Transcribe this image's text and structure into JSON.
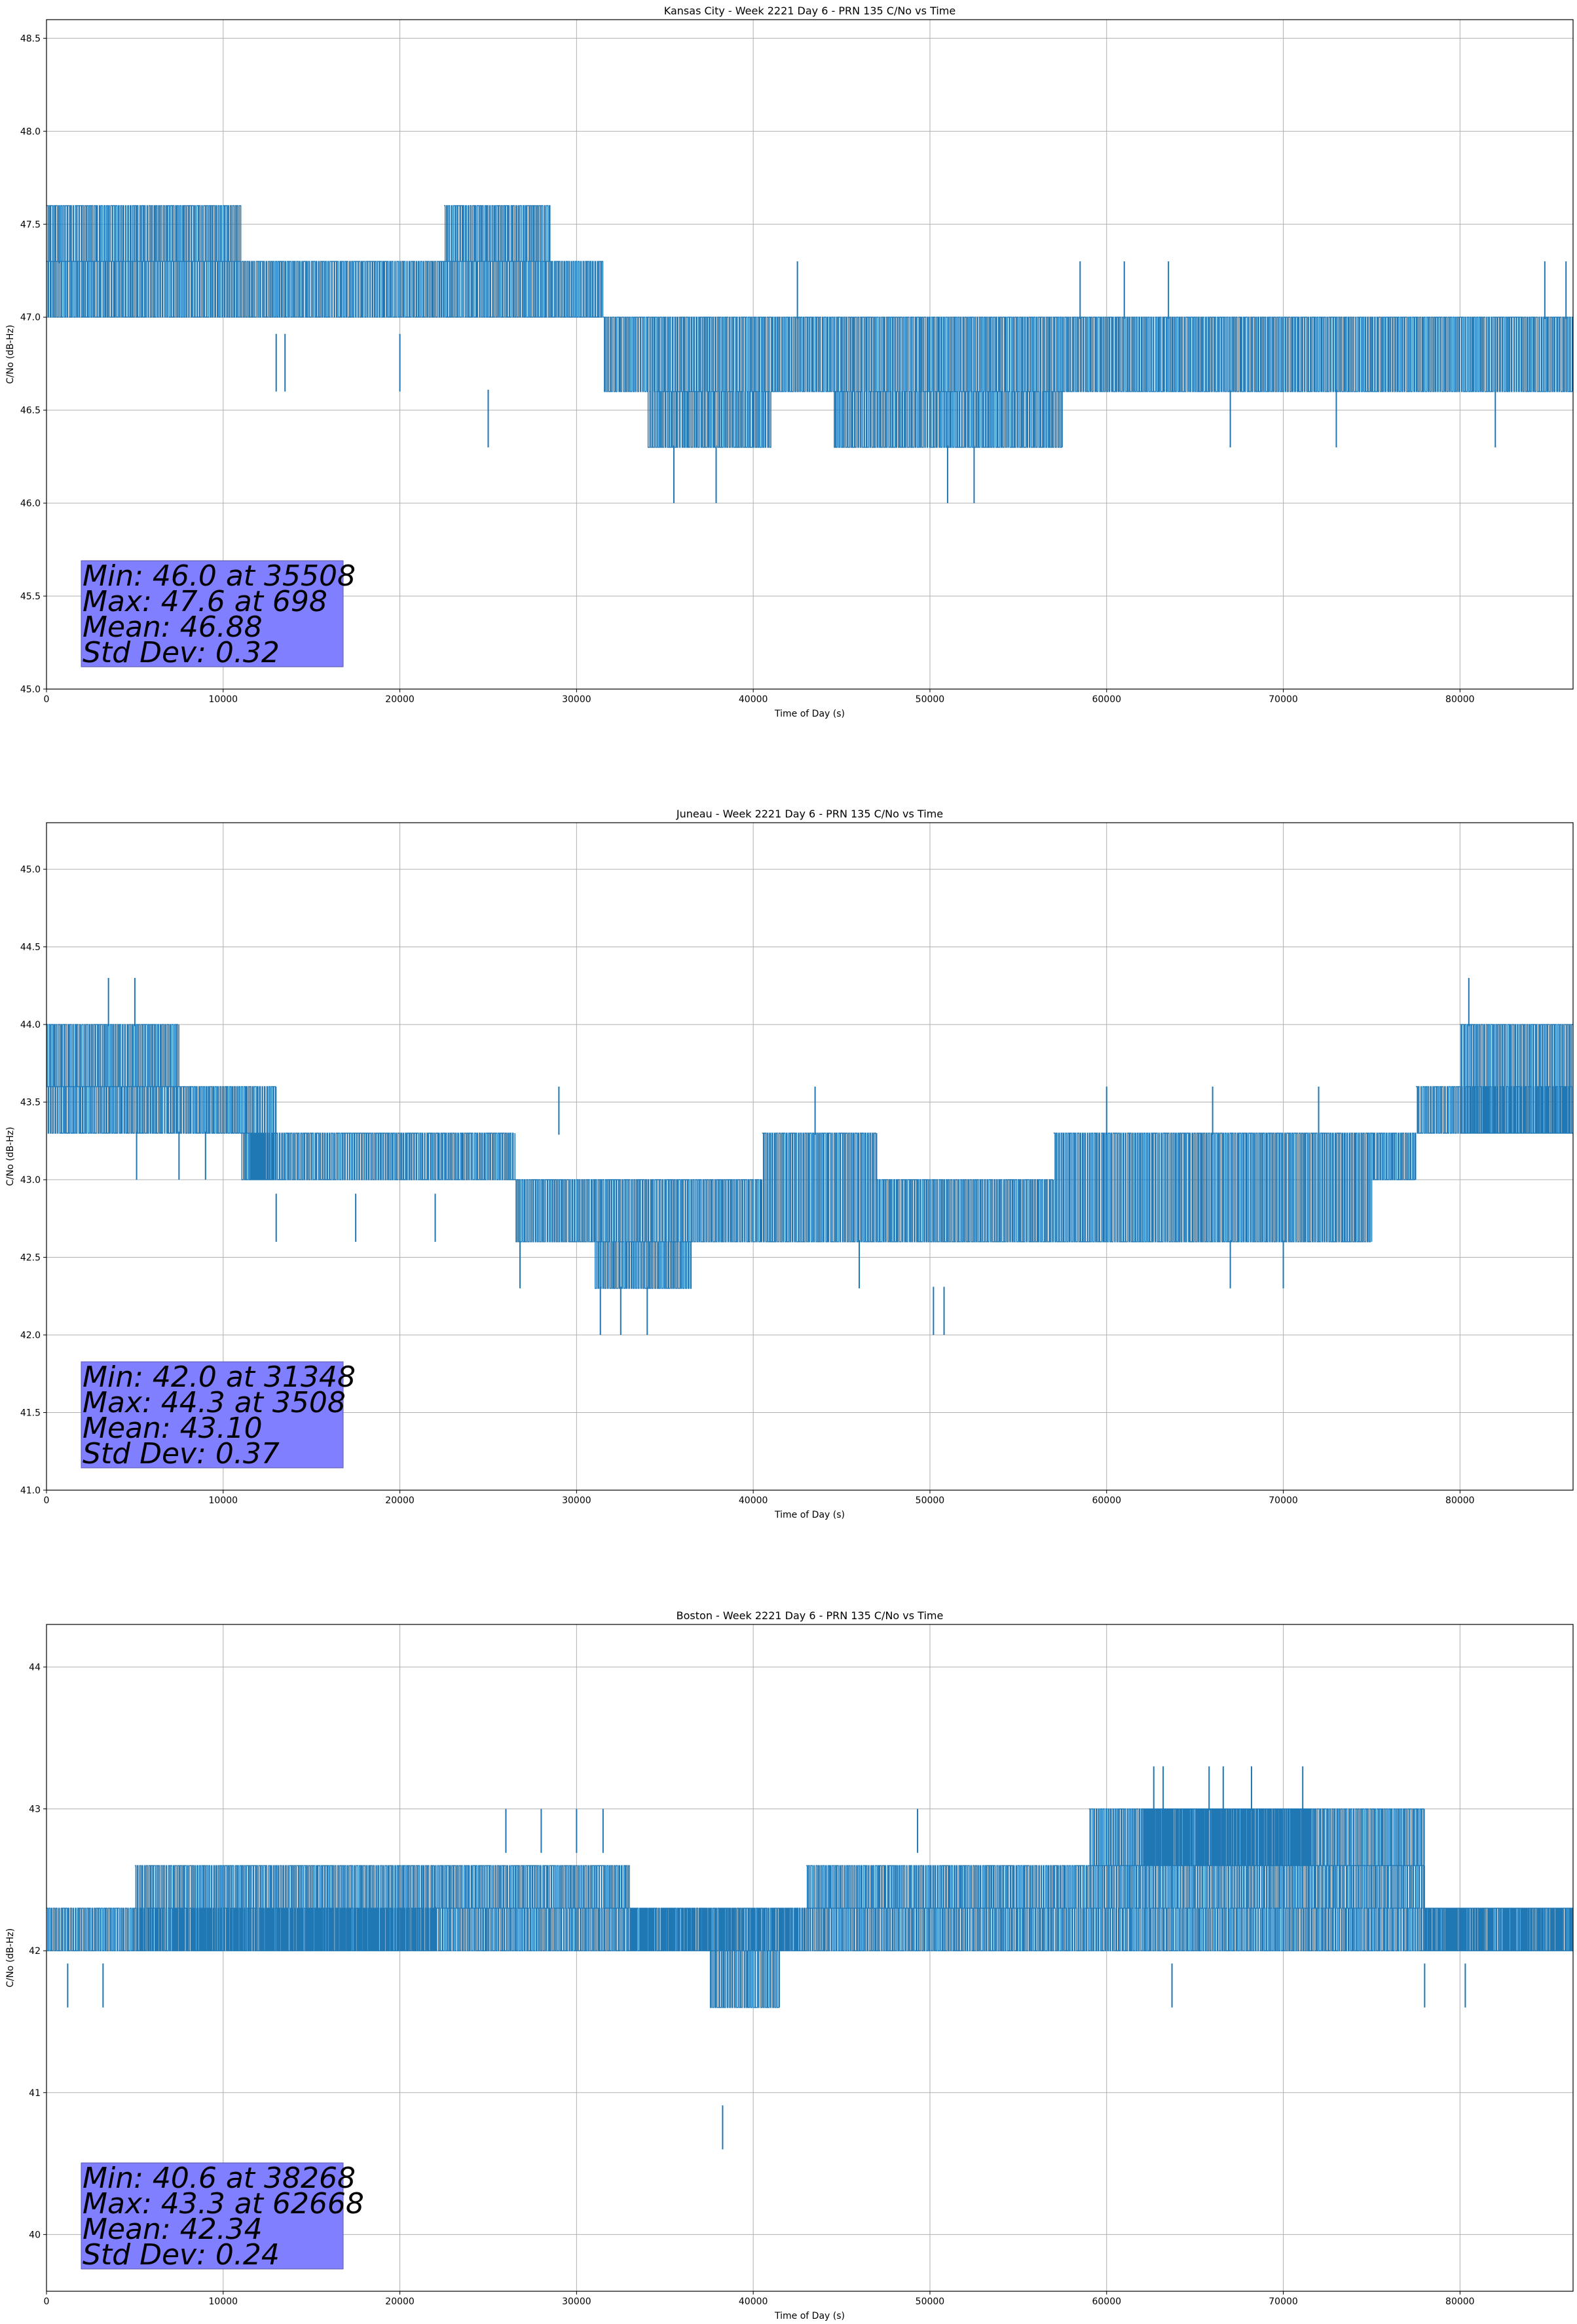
{
  "chart_data": [
    {
      "type": "line",
      "title": "Kansas City - Week 2221 Day 6 - PRN 135 C/No vs Time",
      "xlabel": "Time of Day (s)",
      "ylabel": "C/No (dB-Hz)",
      "xlim": [
        0,
        86400
      ],
      "ylim": [
        45.0,
        48.6
      ],
      "xticks": [
        0,
        10000,
        20000,
        30000,
        40000,
        50000,
        60000,
        70000,
        80000
      ],
      "yticks": [
        45.0,
        45.5,
        46.0,
        46.5,
        47.0,
        47.5,
        48.0,
        48.5
      ],
      "ytick_decimals": 1,
      "grid": true,
      "color": "#1f77b4",
      "quantum": 0.31,
      "segments": [
        {
          "x0": 0,
          "x1": 31500,
          "lo": 47.0,
          "hi": 47.3
        },
        {
          "x0": 31500,
          "x1": 86400,
          "lo": 46.6,
          "hi": 47.0
        },
        {
          "x0": 34000,
          "x1": 41000,
          "lo": 46.3,
          "hi": 46.6
        },
        {
          "x0": 44500,
          "x1": 57500,
          "lo": 46.3,
          "hi": 46.6
        },
        {
          "x0": 0,
          "x1": 11000,
          "lo": 47.3,
          "hi": 47.6
        },
        {
          "x0": 22500,
          "x1": 28500,
          "lo": 47.3,
          "hi": 47.6
        }
      ],
      "spikes": [
        {
          "x": 698,
          "y": 47.6
        },
        {
          "x": 25000,
          "y": 46.3
        },
        {
          "x": 35508,
          "y": 46.0
        },
        {
          "x": 37900,
          "y": 46.0
        },
        {
          "x": 51000,
          "y": 46.0
        },
        {
          "x": 52500,
          "y": 46.0
        },
        {
          "x": 42500,
          "y": 47.3
        },
        {
          "x": 58500,
          "y": 47.3
        },
        {
          "x": 61000,
          "y": 47.3
        },
        {
          "x": 63500,
          "y": 47.3
        },
        {
          "x": 84800,
          "y": 47.3
        },
        {
          "x": 86000,
          "y": 47.3
        },
        {
          "x": 13000,
          "y": 46.6
        },
        {
          "x": 13500,
          "y": 46.6
        },
        {
          "x": 20000,
          "y": 46.6
        },
        {
          "x": 67000,
          "y": 46.3
        },
        {
          "x": 73000,
          "y": 46.3
        },
        {
          "x": 82000,
          "y": 46.3
        }
      ],
      "stats": [
        "Min: 46.0 at 35508",
        "Max: 47.6 at 698",
        "Mean: 46.88",
        "Std Dev: 0.32"
      ]
    },
    {
      "type": "line",
      "title": "Juneau - Week 2221 Day 6 - PRN 135 C/No vs Time",
      "xlabel": "Time of Day (s)",
      "ylabel": "C/No (dB-Hz)",
      "xlim": [
        0,
        86400
      ],
      "ylim": [
        41.0,
        45.3
      ],
      "xticks": [
        0,
        10000,
        20000,
        30000,
        40000,
        50000,
        60000,
        70000,
        80000
      ],
      "yticks": [
        41.0,
        41.5,
        42.0,
        42.5,
        43.0,
        43.5,
        44.0,
        44.5,
        45.0
      ],
      "ytick_decimals": 1,
      "grid": true,
      "color": "#1f77b4",
      "quantum": 0.31,
      "segments": [
        {
          "x0": 0,
          "x1": 2000,
          "lo": 43.6,
          "hi": 44.0
        },
        {
          "x0": 2000,
          "x1": 7500,
          "lo": 43.6,
          "hi": 44.0
        },
        {
          "x0": 0,
          "x1": 11500,
          "lo": 43.3,
          "hi": 43.6
        },
        {
          "x0": 11500,
          "x1": 13000,
          "lo": 43.0,
          "hi": 43.6
        },
        {
          "x0": 11000,
          "x1": 26500,
          "lo": 43.0,
          "hi": 43.3
        },
        {
          "x0": 26500,
          "x1": 40500,
          "lo": 42.6,
          "hi": 43.0
        },
        {
          "x0": 31000,
          "x1": 36500,
          "lo": 42.3,
          "hi": 42.6
        },
        {
          "x0": 40500,
          "x1": 47000,
          "lo": 42.6,
          "hi": 43.3
        },
        {
          "x0": 47000,
          "x1": 57000,
          "lo": 42.6,
          "hi": 43.0
        },
        {
          "x0": 57000,
          "x1": 75000,
          "lo": 42.6,
          "hi": 43.3
        },
        {
          "x0": 75000,
          "x1": 77500,
          "lo": 43.0,
          "hi": 43.3
        },
        {
          "x0": 77500,
          "x1": 86400,
          "lo": 43.3,
          "hi": 43.6
        },
        {
          "x0": 80000,
          "x1": 86400,
          "lo": 43.3,
          "hi": 44.0
        }
      ],
      "spikes": [
        {
          "x": 3508,
          "y": 44.3
        },
        {
          "x": 5000,
          "y": 44.3
        },
        {
          "x": 80500,
          "y": 44.3
        },
        {
          "x": 31348,
          "y": 42.0
        },
        {
          "x": 32500,
          "y": 42.0
        },
        {
          "x": 34000,
          "y": 42.0
        },
        {
          "x": 50200,
          "y": 42.0
        },
        {
          "x": 50800,
          "y": 42.0
        },
        {
          "x": 26800,
          "y": 42.3
        },
        {
          "x": 46000,
          "y": 42.3
        },
        {
          "x": 67000,
          "y": 42.3
        },
        {
          "x": 70000,
          "y": 42.3
        },
        {
          "x": 5100,
          "y": 43.0
        },
        {
          "x": 7500,
          "y": 43.0
        },
        {
          "x": 9000,
          "y": 43.0
        },
        {
          "x": 13000,
          "y": 42.6
        },
        {
          "x": 17500,
          "y": 42.6
        },
        {
          "x": 22000,
          "y": 42.6
        },
        {
          "x": 43500,
          "y": 43.6
        },
        {
          "x": 60000,
          "y": 43.6
        },
        {
          "x": 66000,
          "y": 43.6
        },
        {
          "x": 72000,
          "y": 43.6
        },
        {
          "x": 29000,
          "y": 43.6
        }
      ],
      "stats": [
        "Min: 42.0 at 31348",
        "Max: 44.3 at 3508",
        "Mean: 43.10",
        "Std Dev: 0.37"
      ]
    },
    {
      "type": "line",
      "title": "Boston - Week 2221 Day 6 - PRN 135 C/No vs Time",
      "xlabel": "Time of Day (s)",
      "ylabel": "C/No (dB-Hz)",
      "xlim": [
        0,
        86400
      ],
      "ylim": [
        39.6,
        44.3
      ],
      "xticks": [
        0,
        10000,
        20000,
        30000,
        40000,
        50000,
        60000,
        70000,
        80000
      ],
      "yticks": [
        40,
        41,
        42,
        43,
        44
      ],
      "ytick_decimals": 0,
      "grid": true,
      "color": "#1f77b4",
      "quantum": 0.31,
      "segments": [
        {
          "x0": 0,
          "x1": 86400,
          "lo": 42.0,
          "hi": 42.3
        },
        {
          "x0": 5000,
          "x1": 22000,
          "lo": 42.0,
          "hi": 42.6
        },
        {
          "x0": 22000,
          "x1": 33000,
          "lo": 42.3,
          "hi": 42.6
        },
        {
          "x0": 33000,
          "x1": 43000,
          "lo": 42.0,
          "hi": 42.3
        },
        {
          "x0": 37500,
          "x1": 41500,
          "lo": 41.6,
          "hi": 42.0
        },
        {
          "x0": 43000,
          "x1": 56000,
          "lo": 42.3,
          "hi": 42.6
        },
        {
          "x0": 56000,
          "x1": 78000,
          "lo": 42.3,
          "hi": 42.6
        },
        {
          "x0": 59000,
          "x1": 78000,
          "lo": 42.6,
          "hi": 43.0
        },
        {
          "x0": 62000,
          "x1": 71500,
          "lo": 42.6,
          "hi": 43.0
        },
        {
          "x0": 78000,
          "x1": 86400,
          "lo": 42.0,
          "hi": 42.3
        }
      ],
      "spikes": [
        {
          "x": 62668,
          "y": 43.3
        },
        {
          "x": 63200,
          "y": 43.3
        },
        {
          "x": 65800,
          "y": 43.3
        },
        {
          "x": 66600,
          "y": 43.3
        },
        {
          "x": 68200,
          "y": 43.3
        },
        {
          "x": 71100,
          "y": 43.3
        },
        {
          "x": 38268,
          "y": 40.6
        },
        {
          "x": 1200,
          "y": 41.6
        },
        {
          "x": 3200,
          "y": 41.6
        },
        {
          "x": 63700,
          "y": 41.6
        },
        {
          "x": 78000,
          "y": 41.6
        },
        {
          "x": 80300,
          "y": 41.6
        },
        {
          "x": 26000,
          "y": 43.0
        },
        {
          "x": 28000,
          "y": 43.0
        },
        {
          "x": 30000,
          "y": 43.0
        },
        {
          "x": 31500,
          "y": 43.0
        },
        {
          "x": 49300,
          "y": 43.0
        },
        {
          "x": 22000,
          "y": 42.0
        }
      ],
      "stats": [
        "Min: 40.6 at 38268",
        "Max: 43.3 at 62668",
        "Mean: 42.34",
        "Std Dev: 0.24"
      ]
    }
  ]
}
